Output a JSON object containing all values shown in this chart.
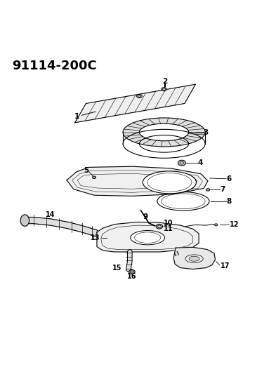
{
  "title": "91114-200C",
  "bg_color": "#ffffff",
  "line_color": "#000000",
  "title_fontsize": 13,
  "label_fontsize": 7.5
}
